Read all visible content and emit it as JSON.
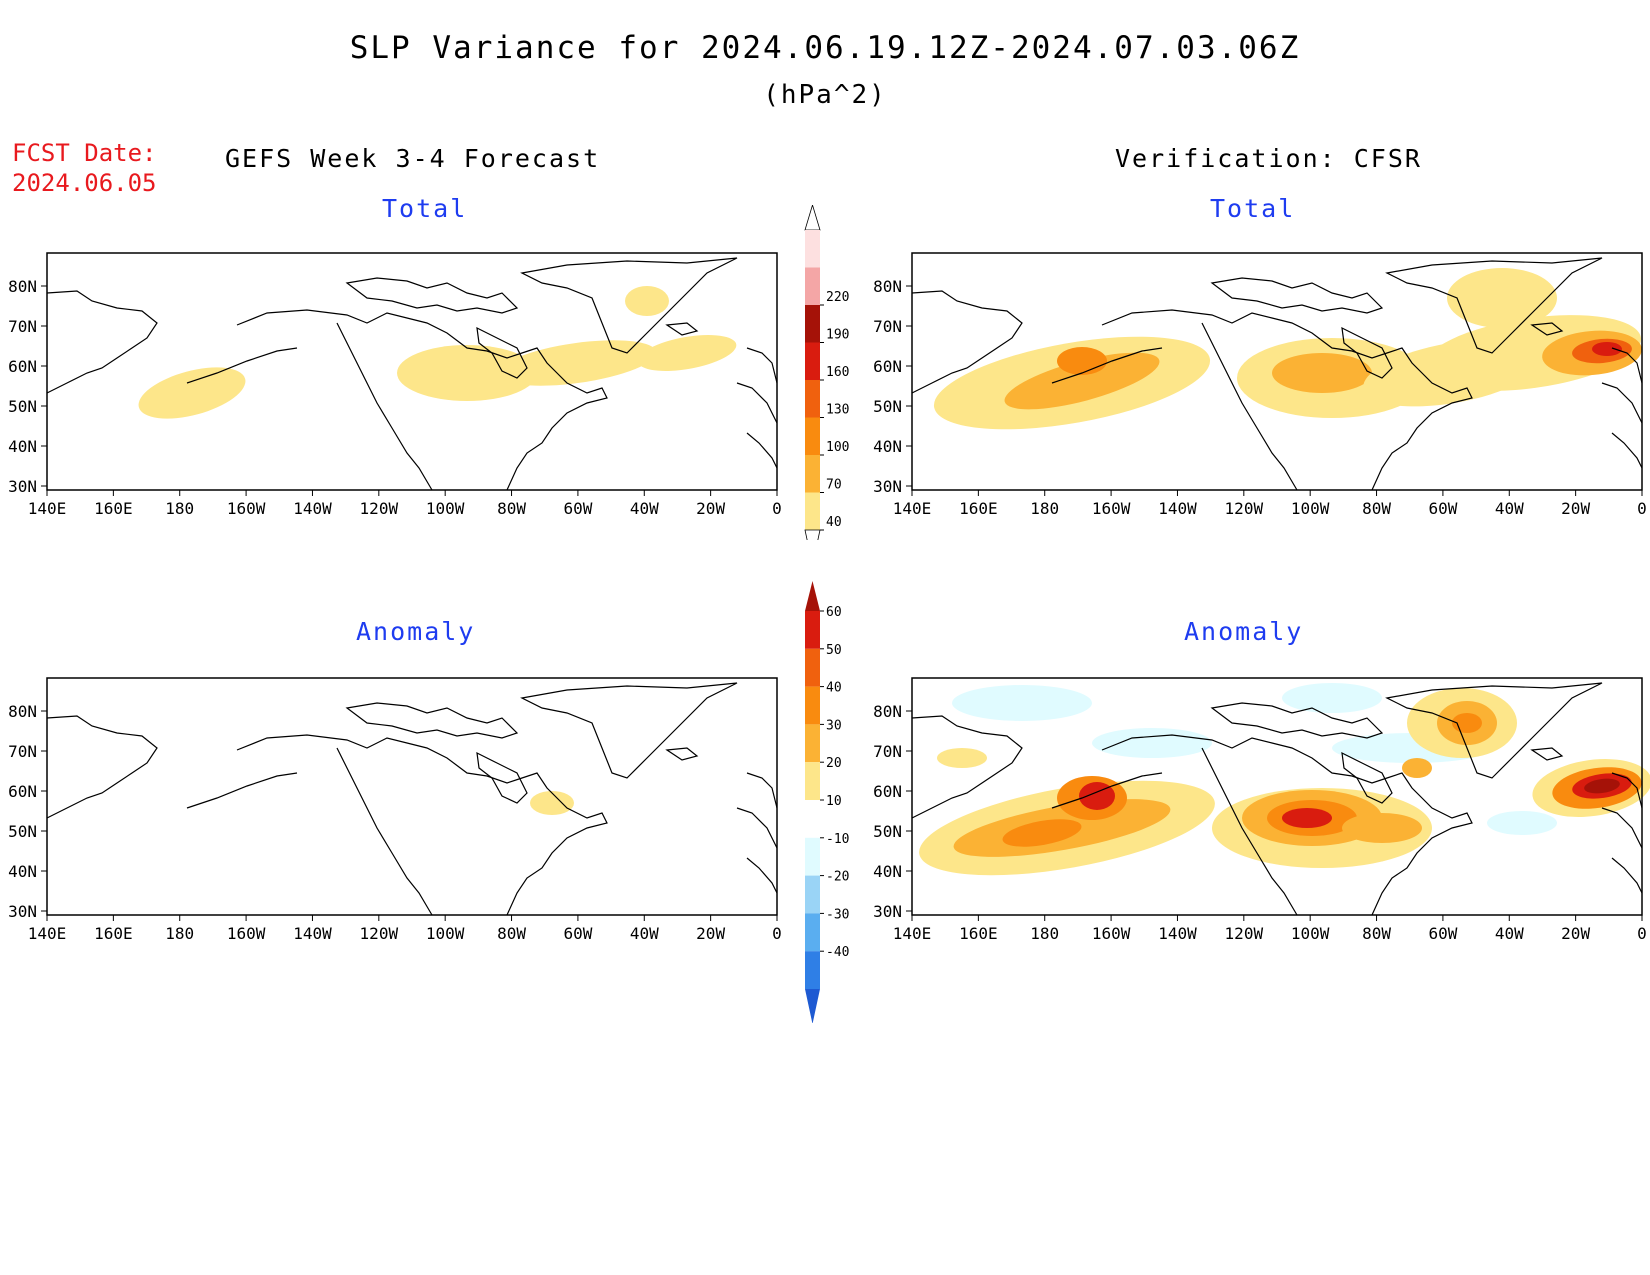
{
  "title": "SLP Variance for 2024.06.19.12Z-2024.07.03.06Z",
  "units": "(hPa^2)",
  "fcst_date": {
    "label": "FCST Date:",
    "value": "2024.06.05"
  },
  "columns": {
    "left": "GEFS Week 3-4 Forecast",
    "right": "Verification: CFSR"
  },
  "panel_titles": {
    "total": "Total",
    "anomaly": "Anomaly"
  },
  "axes": {
    "lat_labels": [
      "80N",
      "70N",
      "60N",
      "50N",
      "40N",
      "30N"
    ],
    "lon_labels": [
      "140E",
      "160E",
      "180",
      "160W",
      "140W",
      "120W",
      "100W",
      "80W",
      "60W",
      "40W",
      "20W",
      "0"
    ]
  },
  "colorbars": {
    "total": {
      "levels": [
        "40",
        "70",
        "100",
        "130",
        "160",
        "190",
        "220"
      ],
      "colors": [
        "#fde68a",
        "#fbb234",
        "#f98b0f",
        "#f0610e",
        "#d91c0f",
        "#a51208",
        "#f4a6a6",
        "#fde0e0"
      ]
    },
    "anomaly": {
      "levels": [
        "60",
        "50",
        "40",
        "30",
        "20",
        "10",
        "-10",
        "-20",
        "-30",
        "-40"
      ],
      "colors": [
        "#a51208",
        "#d91c0f",
        "#f0610e",
        "#f98b0f",
        "#fbb234",
        "#fde68a",
        "#ffffff",
        "#e0fbff",
        "#9ad4f6",
        "#5aaef0",
        "#2f7fe6",
        "#1e5ad2"
      ]
    }
  },
  "map_fill_colors": {
    "c1": "#fde68a",
    "c2": "#fbb234",
    "c3": "#f98b0f",
    "c4": "#f0610e",
    "c5": "#d91c0f",
    "c6": "#a51208",
    "neg1": "#e0fbff",
    "neg2": "#cbeefb"
  }
}
